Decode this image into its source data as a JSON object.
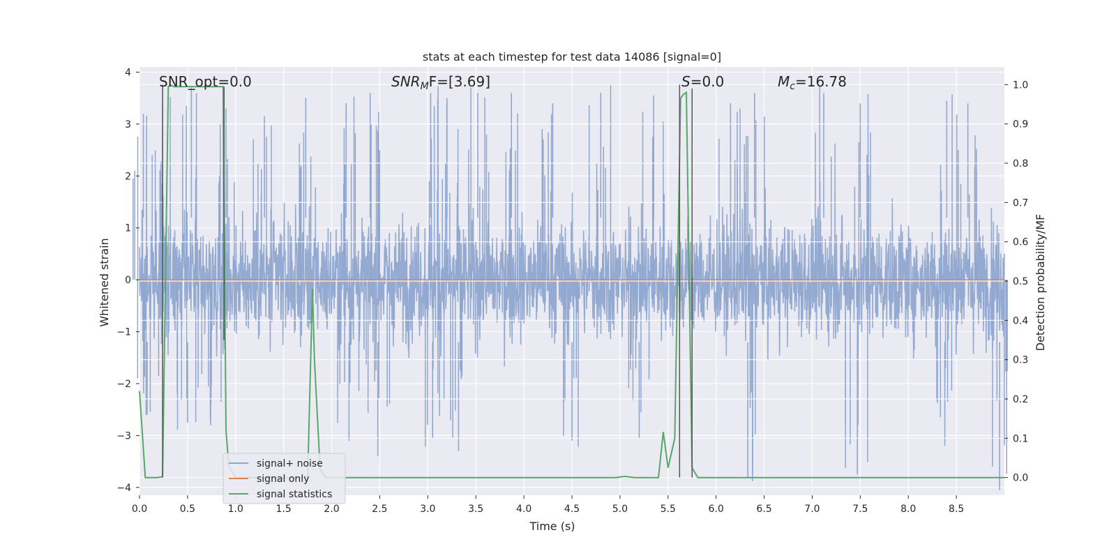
{
  "chart_data": {
    "type": "line",
    "title": "stats at each timestep for test data 14086 [signal=0]",
    "xlabel": "Time (s)",
    "ylabel_left": "Whitened strain",
    "ylabel_right": "Detection probability/MF",
    "xlim": [
      0.0,
      9.0
    ],
    "ylim_left": [
      -4.15,
      4.1
    ],
    "ylim_right": [
      -0.045,
      1.045
    ],
    "x_ticks": [
      "0.0",
      "0.5",
      "1.0",
      "1.5",
      "2.0",
      "2.5",
      "3.0",
      "3.5",
      "4.0",
      "4.5",
      "5.0",
      "5.5",
      "6.0",
      "6.5",
      "7.0",
      "7.5",
      "8.0",
      "8.5"
    ],
    "y_ticks_left": [
      "4",
      "3",
      "2",
      "1",
      "0",
      "−1",
      "−2",
      "−3",
      "−4"
    ],
    "y_ticks_right": [
      "1.0",
      "0.9",
      "0.8",
      "0.7",
      "0.6",
      "0.5",
      "0.4",
      "0.3",
      "0.2",
      "0.1",
      "0.0"
    ],
    "grid": true,
    "legend_position": "lower-left",
    "annotations": {
      "snr_opt": "SNR_opt=0.0",
      "snr_mf_main": "SNR",
      "snr_mf_sub": "M",
      "snr_mf_tail": "F=[3.69]",
      "s_label": "S",
      "s_value": "=0.0",
      "mc_main": "M",
      "mc_sub": "c",
      "mc_value": "=16.78"
    },
    "series": [
      {
        "name": "signal+ noise",
        "color": "#8fa6cf",
        "description_kind": "dense whitened noise trace",
        "amplitude_envelope": {
          "typical_band": [
            -1.5,
            1.5
          ],
          "peaks_positive": [
            [
              0.04,
              3.2
            ],
            [
              0.24,
              3.4
            ],
            [
              0.54,
              3.7
            ],
            [
              0.9,
              3.3
            ],
            [
              1.3,
              3.15
            ],
            [
              1.73,
              3.5
            ],
            [
              2.15,
              3.4
            ],
            [
              2.4,
              3.6
            ],
            [
              3.03,
              3.6
            ],
            [
              3.2,
              3.5
            ],
            [
              3.52,
              3.6
            ],
            [
              3.87,
              3.6
            ],
            [
              4.3,
              3.4
            ],
            [
              4.8,
              3.6
            ],
            [
              5.35,
              3.55
            ],
            [
              6.15,
              3.4
            ],
            [
              6.4,
              3.6
            ],
            [
              7.12,
              3.6
            ],
            [
              7.5,
              3.4
            ],
            [
              8.4,
              3.45
            ],
            [
              8.62,
              3.4
            ]
          ],
          "peaks_negative": [
            [
              0.08,
              -2.6
            ],
            [
              0.5,
              -2.75
            ],
            [
              0.74,
              -2.8
            ],
            [
              2.18,
              -3.1
            ],
            [
              2.48,
              -3.4
            ],
            [
              3.05,
              -3.05
            ],
            [
              3.32,
              -3.3
            ],
            [
              4.5,
              -3.1
            ],
            [
              5.2,
              -3.05
            ],
            [
              6.33,
              -3.8
            ],
            [
              7.47,
              -3.75
            ],
            [
              8.38,
              -3.2
            ],
            [
              8.95,
              -4.05
            ]
          ]
        }
      },
      {
        "name": "signal only",
        "color": "#dd8452",
        "x": [
          0.0,
          9.0
        ],
        "y": [
          0.0,
          0.0
        ]
      },
      {
        "name": "signal statistics",
        "color": "#55a868",
        "axis": "right",
        "x": [
          0.0,
          0.06,
          0.18,
          0.24,
          0.3,
          0.33,
          0.36,
          0.5,
          0.7,
          0.87,
          0.9,
          0.93,
          1.0,
          1.5,
          1.75,
          1.8,
          1.82,
          1.88,
          1.94,
          2.0,
          3.0,
          4.0,
          4.95,
          5.05,
          5.15,
          5.4,
          5.45,
          5.5,
          5.57,
          5.63,
          5.66,
          5.69,
          5.75,
          5.81,
          5.88,
          6.0,
          7.0,
          8.0,
          9.0
        ],
        "y": [
          0.22,
          0.0,
          0.0,
          0.002,
          0.995,
          0.998,
          0.995,
          0.995,
          0.995,
          0.995,
          0.12,
          0.03,
          0.0,
          0.0,
          0.0,
          0.48,
          0.3,
          0.02,
          0.0,
          0.0,
          0.0,
          0.0,
          0.0,
          0.003,
          0.0,
          0.0,
          0.116,
          0.025,
          0.1,
          0.965,
          0.975,
          0.98,
          0.025,
          0.0,
          0.0,
          0.0,
          0.0,
          0.0,
          0.0
        ]
      }
    ],
    "vertical_markers": [
      {
        "x": 0.24,
        "axis": "right",
        "y0": 0.0,
        "y1": 1.0
      },
      {
        "x": 0.88,
        "axis": "right",
        "y0": 0.35,
        "y1": 0.995
      },
      {
        "x": 5.62,
        "axis": "right",
        "y0": 0.0,
        "y1": 1.0
      },
      {
        "x": 5.75,
        "axis": "right",
        "y0": 0.0,
        "y1": 0.99
      }
    ],
    "right_axis_gridlines": [
      1.0,
      0.9,
      0.8,
      0.7,
      0.6,
      0.5,
      0.4,
      0.3,
      0.2,
      0.1,
      0.0
    ]
  }
}
